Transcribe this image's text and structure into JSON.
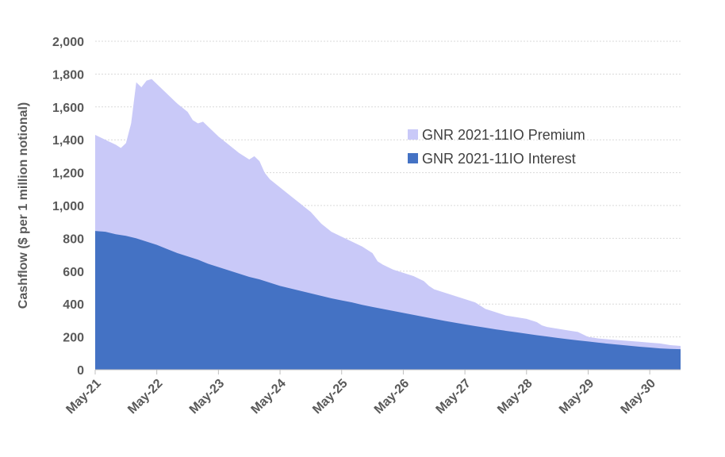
{
  "chart_data": {
    "type": "area",
    "stacked": true,
    "ylabel": "Cashflow ($ per 1 million notional)",
    "ylim": [
      0,
      2000
    ],
    "yticks": [
      0,
      200,
      400,
      600,
      800,
      1000,
      1200,
      1400,
      1600,
      1800,
      2000
    ],
    "ytick_labels": [
      "0",
      "200",
      "400",
      "600",
      "800",
      "1,000",
      "1,200",
      "1,400",
      "1,600",
      "1,800",
      "2,000"
    ],
    "x_range_months": [
      0,
      114
    ],
    "xticks": [
      {
        "m": 0,
        "label": "May-21"
      },
      {
        "m": 12,
        "label": "May-22"
      },
      {
        "m": 24,
        "label": "May-23"
      },
      {
        "m": 36,
        "label": "May-24"
      },
      {
        "m": 48,
        "label": "May-25"
      },
      {
        "m": 60,
        "label": "May-26"
      },
      {
        "m": 72,
        "label": "May-27"
      },
      {
        "m": 84,
        "label": "May-28"
      },
      {
        "m": 96,
        "label": "May-29"
      },
      {
        "m": 108,
        "label": "May-30"
      }
    ],
    "grid": true,
    "legend_position": "upper-right",
    "series": [
      {
        "name": "GNR 2021-11IO Premium",
        "color": "#c9c9f8",
        "total_points": [
          [
            0,
            1430
          ],
          [
            2,
            1400
          ],
          [
            4,
            1370
          ],
          [
            5,
            1350
          ],
          [
            6,
            1380
          ],
          [
            7,
            1500
          ],
          [
            8,
            1750
          ],
          [
            9,
            1720
          ],
          [
            10,
            1760
          ],
          [
            11,
            1770
          ],
          [
            12,
            1740
          ],
          [
            14,
            1680
          ],
          [
            16,
            1620
          ],
          [
            18,
            1570
          ],
          [
            19,
            1520
          ],
          [
            20,
            1500
          ],
          [
            21,
            1510
          ],
          [
            22,
            1480
          ],
          [
            24,
            1420
          ],
          [
            26,
            1370
          ],
          [
            28,
            1320
          ],
          [
            30,
            1280
          ],
          [
            31,
            1300
          ],
          [
            32,
            1270
          ],
          [
            33,
            1200
          ],
          [
            34,
            1160
          ],
          [
            36,
            1110
          ],
          [
            38,
            1060
          ],
          [
            40,
            1010
          ],
          [
            42,
            960
          ],
          [
            44,
            890
          ],
          [
            46,
            840
          ],
          [
            48,
            810
          ],
          [
            50,
            780
          ],
          [
            52,
            750
          ],
          [
            54,
            710
          ],
          [
            55,
            660
          ],
          [
            56,
            640
          ],
          [
            58,
            610
          ],
          [
            60,
            590
          ],
          [
            62,
            570
          ],
          [
            64,
            540
          ],
          [
            65,
            510
          ],
          [
            66,
            490
          ],
          [
            68,
            470
          ],
          [
            70,
            450
          ],
          [
            72,
            430
          ],
          [
            74,
            410
          ],
          [
            75,
            390
          ],
          [
            76,
            370
          ],
          [
            78,
            350
          ],
          [
            80,
            330
          ],
          [
            82,
            320
          ],
          [
            84,
            310
          ],
          [
            86,
            290
          ],
          [
            87,
            270
          ],
          [
            88,
            260
          ],
          [
            90,
            250
          ],
          [
            92,
            240
          ],
          [
            94,
            230
          ],
          [
            95,
            215
          ],
          [
            96,
            200
          ],
          [
            98,
            190
          ],
          [
            100,
            185
          ],
          [
            102,
            180
          ],
          [
            104,
            175
          ],
          [
            106,
            170
          ],
          [
            108,
            165
          ],
          [
            110,
            160
          ],
          [
            112,
            150
          ],
          [
            114,
            145
          ]
        ]
      },
      {
        "name": "GNR 2021-11IO Interest",
        "color": "#4472c4",
        "points": [
          [
            0,
            845
          ],
          [
            2,
            840
          ],
          [
            4,
            825
          ],
          [
            6,
            815
          ],
          [
            8,
            800
          ],
          [
            10,
            780
          ],
          [
            12,
            760
          ],
          [
            14,
            735
          ],
          [
            16,
            710
          ],
          [
            18,
            690
          ],
          [
            20,
            670
          ],
          [
            22,
            645
          ],
          [
            24,
            625
          ],
          [
            26,
            605
          ],
          [
            28,
            585
          ],
          [
            30,
            565
          ],
          [
            32,
            550
          ],
          [
            34,
            530
          ],
          [
            36,
            510
          ],
          [
            38,
            495
          ],
          [
            40,
            480
          ],
          [
            42,
            465
          ],
          [
            44,
            450
          ],
          [
            46,
            435
          ],
          [
            48,
            422
          ],
          [
            50,
            410
          ],
          [
            52,
            395
          ],
          [
            54,
            382
          ],
          [
            56,
            370
          ],
          [
            58,
            358
          ],
          [
            60,
            346
          ],
          [
            62,
            334
          ],
          [
            64,
            322
          ],
          [
            66,
            310
          ],
          [
            68,
            298
          ],
          [
            70,
            287
          ],
          [
            72,
            276
          ],
          [
            74,
            266
          ],
          [
            76,
            256
          ],
          [
            78,
            246
          ],
          [
            80,
            237
          ],
          [
            82,
            228
          ],
          [
            84,
            219
          ],
          [
            86,
            210
          ],
          [
            88,
            202
          ],
          [
            90,
            194
          ],
          [
            92,
            186
          ],
          [
            94,
            179
          ],
          [
            96,
            172
          ],
          [
            98,
            165
          ],
          [
            100,
            158
          ],
          [
            102,
            152
          ],
          [
            104,
            146
          ],
          [
            106,
            140
          ],
          [
            108,
            135
          ],
          [
            110,
            130
          ],
          [
            112,
            127
          ],
          [
            114,
            125
          ]
        ]
      }
    ]
  }
}
